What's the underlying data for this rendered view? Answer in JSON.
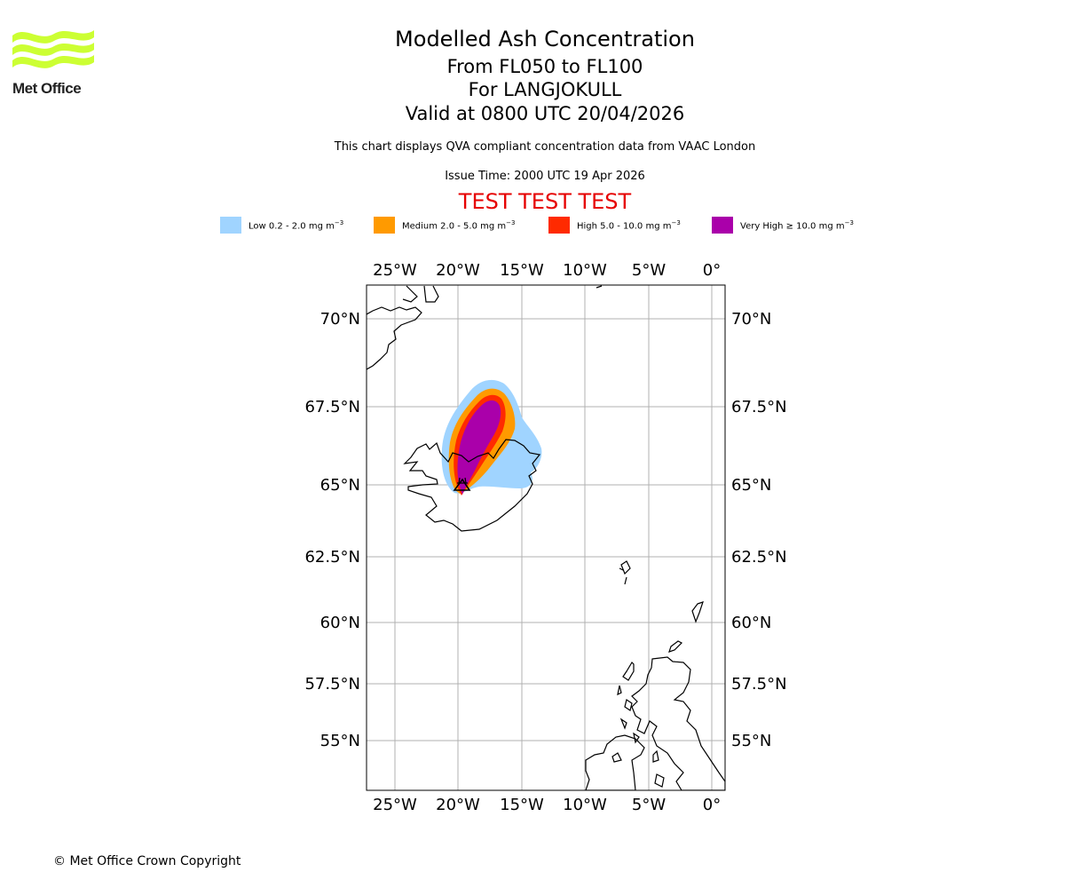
{
  "logo": {
    "text": "Met Office",
    "icon": "met-office-wave-logo",
    "color": "#ccff33"
  },
  "header": {
    "title": "Modelled Ash Concentration",
    "flight_levels": "From FL050 to FL100",
    "volcano": "For LANGJOKULL",
    "valid_time": "Valid at 0800 UTC 20/04/2026",
    "description": "This chart displays QVA compliant concentration data from VAAC London",
    "issue_time": "Issue Time: 2000 UTC 19 Apr 2026",
    "test_banner": "TEST TEST TEST",
    "test_color": "#e60000"
  },
  "legend": [
    {
      "label": "Low 0.2 - 2.0 mg m",
      "unit_exp": "−3",
      "color": "#a0d4ff"
    },
    {
      "label": "Medium 2.0 - 5.0 mg m",
      "unit_exp": "−3",
      "color": "#ff9a00"
    },
    {
      "label": "High 5.0 - 10.0 mg m",
      "unit_exp": "−3",
      "color": "#ff2a00"
    },
    {
      "label": "Very High  ≥  10.0 mg m",
      "unit_exp": "−3",
      "color": "#aa00aa"
    }
  ],
  "map": {
    "lon_ticks": [
      "25°W",
      "20°W",
      "15°W",
      "10°W",
      "5°W",
      "0°"
    ],
    "lat_ticks": [
      "70°N",
      "67.5°N",
      "65°N",
      "62.5°N",
      "60°N",
      "57.5°N",
      "55°N"
    ],
    "volcano_marker": "volcano-triangle-icon"
  },
  "footer": {
    "copyright": "© Met Office Crown Copyright"
  }
}
